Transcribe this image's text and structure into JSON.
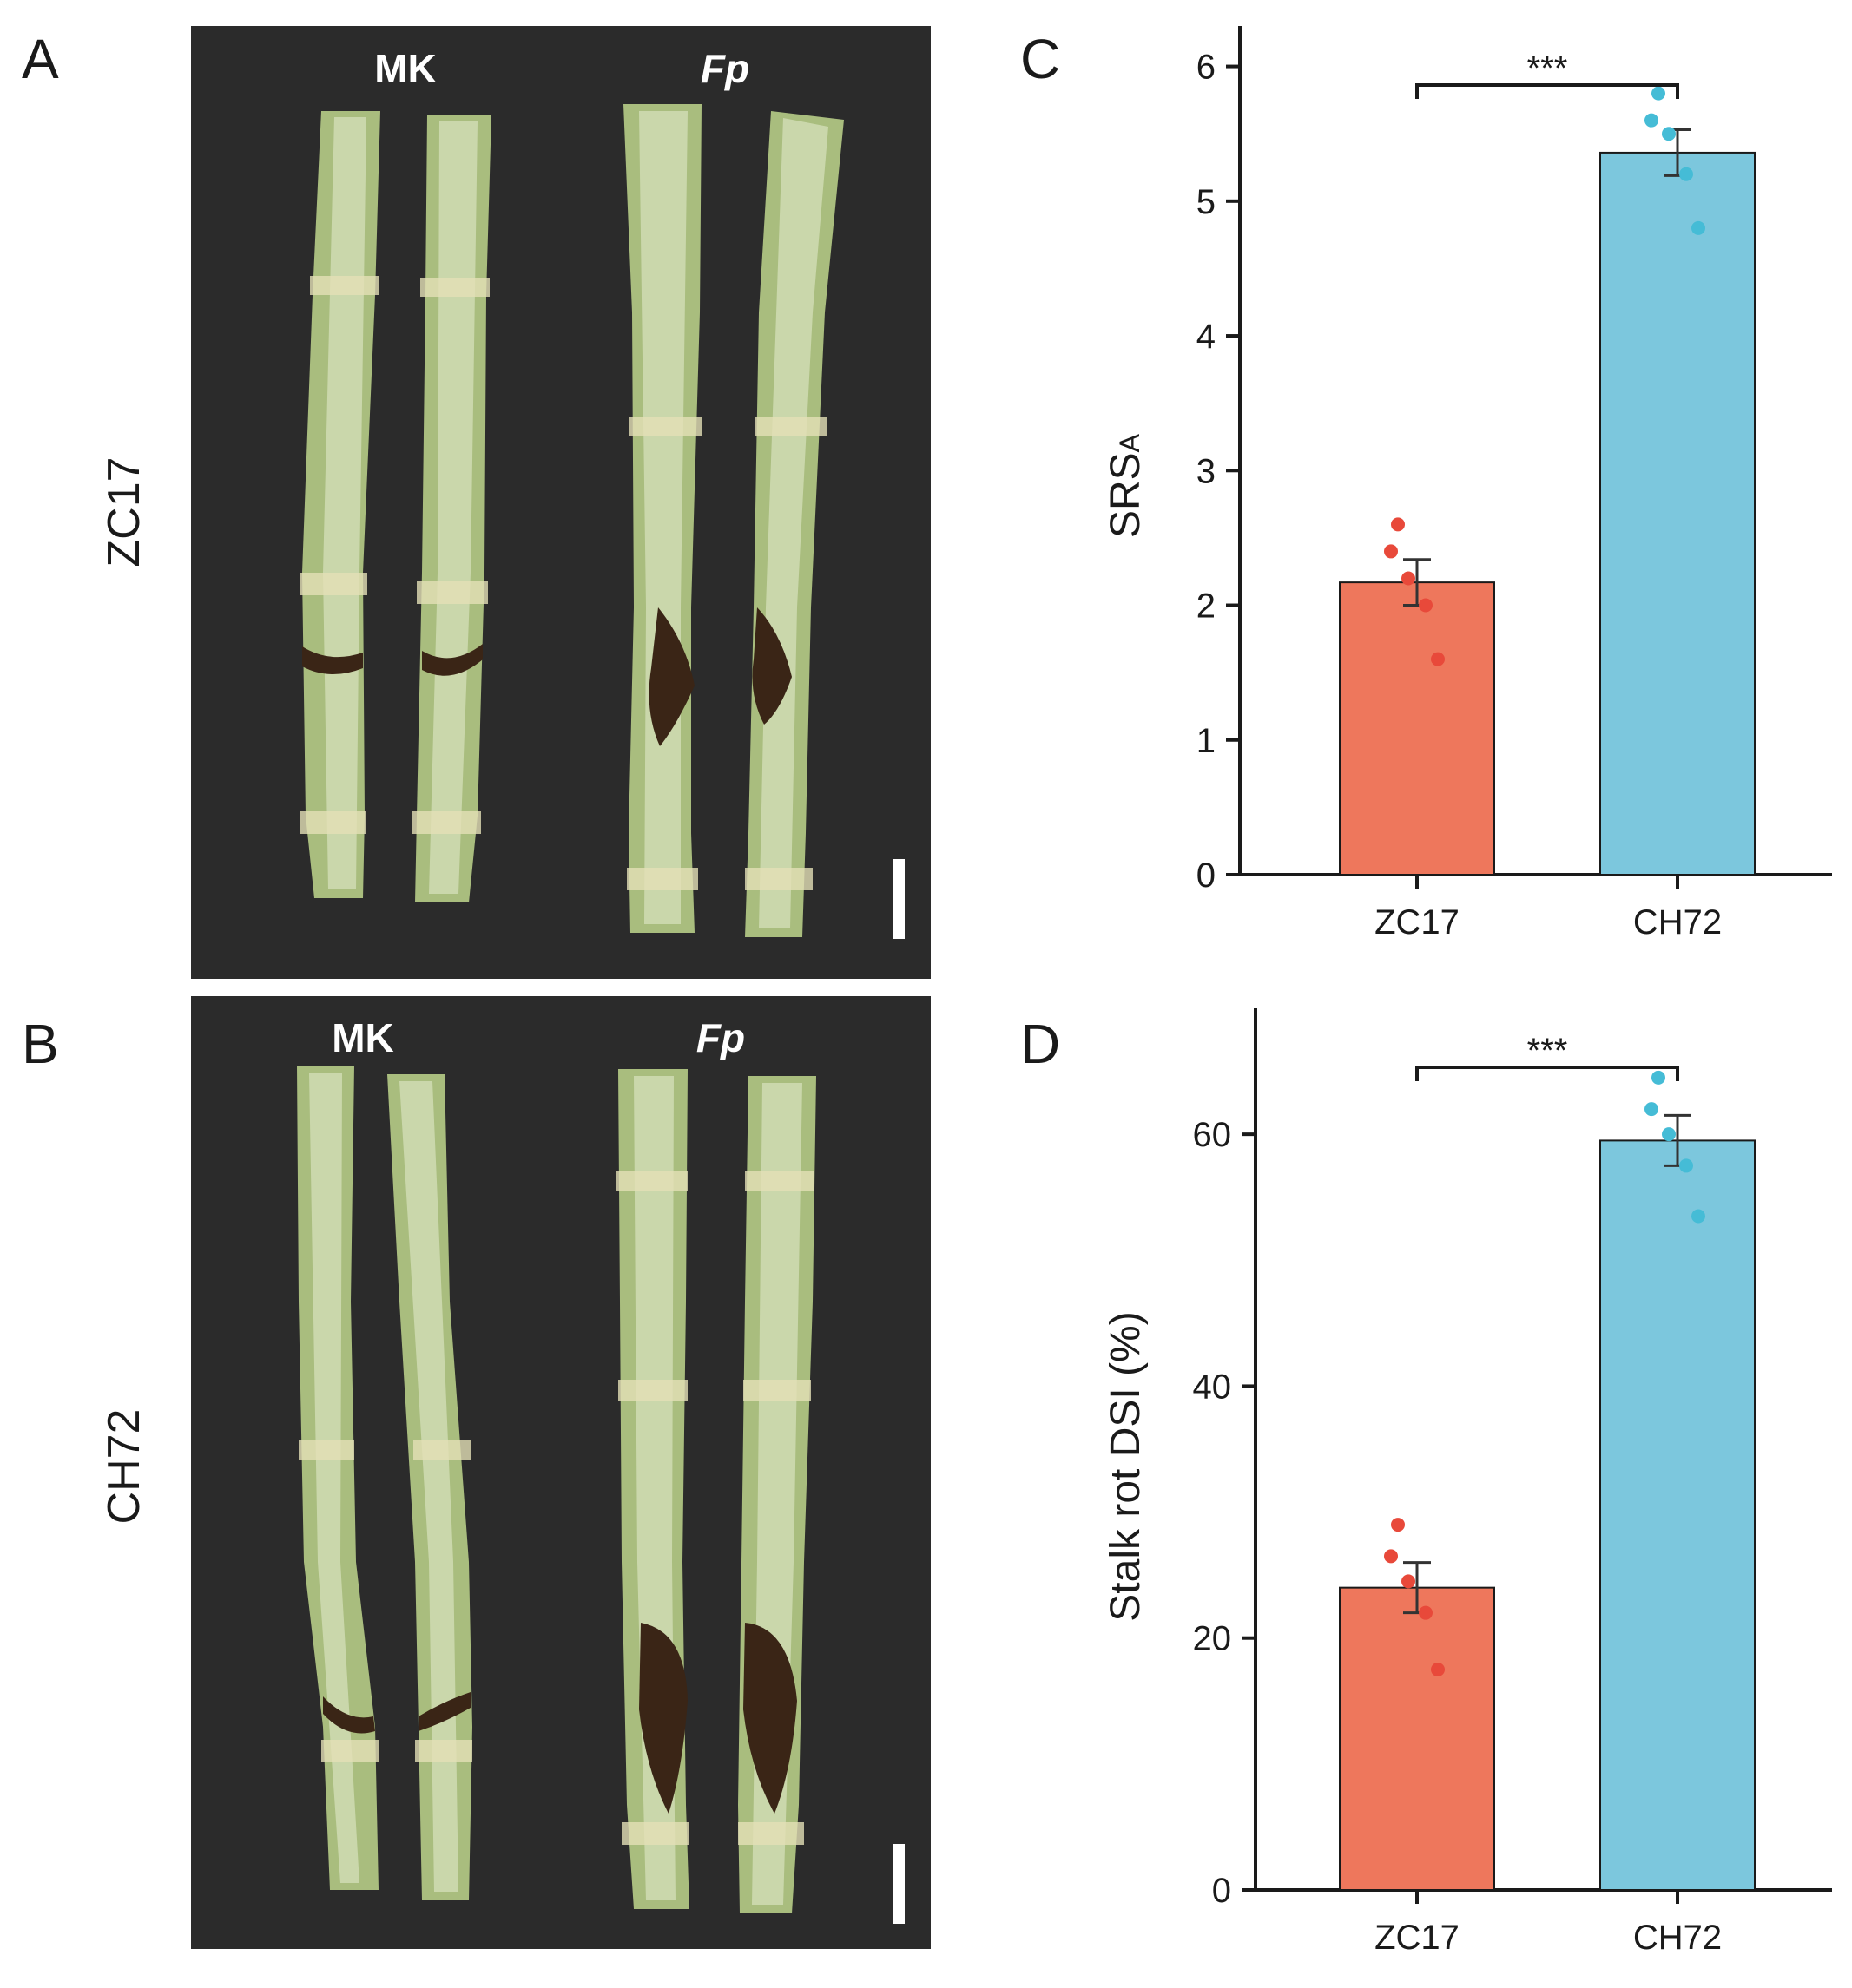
{
  "panels": {
    "A": {
      "letter": "A",
      "row_label": "ZC17",
      "col_labels": [
        "MK",
        "Fp"
      ]
    },
    "B": {
      "letter": "B",
      "row_label": "CH72",
      "col_labels": [
        "MK",
        "Fp"
      ]
    }
  },
  "colors": {
    "photo_bg": "#2b2b2b",
    "stalk": "#a9bd7e",
    "stalk_light": "#d9e2bf",
    "lesion": "#3a2516",
    "ZC17": "#ee775c",
    "CH72": "#7cc7dd",
    "ZC17_dot": "#e8493a",
    "CH72_dot": "#45bcd6"
  },
  "chart_data": [
    {
      "panel": "C",
      "type": "bar",
      "categories": [
        "ZC17",
        "CH72"
      ],
      "values": [
        2.17,
        5.36
      ],
      "error": [
        0.17,
        0.17
      ],
      "points": [
        [
          2.6,
          2.4,
          2.2,
          2.0,
          1.6
        ],
        [
          5.8,
          5.6,
          5.5,
          5.2,
          4.8
        ]
      ],
      "ylabel": "SRS",
      "ylabel_sub": "A",
      "ylim": [
        0,
        6.3
      ],
      "yticks": [
        0,
        1,
        2,
        3,
        4,
        5,
        6
      ],
      "significance": "***"
    },
    {
      "panel": "D",
      "type": "bar",
      "categories": [
        "ZC17",
        "CH72"
      ],
      "values": [
        24.0,
        59.5
      ],
      "error": [
        2.0,
        2.0
      ],
      "points": [
        [
          29.0,
          26.5,
          24.5,
          22.0,
          17.5
        ],
        [
          64.5,
          62.0,
          60.0,
          57.5,
          53.5
        ]
      ],
      "ylabel": "Stalk rot DSI (%)",
      "ylim": [
        0,
        70
      ],
      "yticks": [
        0,
        20,
        40,
        60
      ],
      "significance": "***"
    }
  ]
}
